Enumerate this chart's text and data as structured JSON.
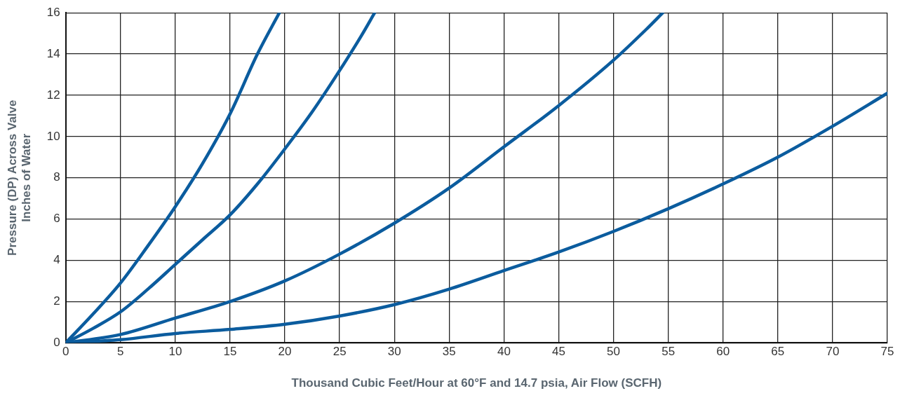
{
  "chart_data": {
    "type": "line",
    "xlabel": "Thousand Cubic Feet/Hour at 60°F and 14.7 psia, Air Flow (SCFH)",
    "ylabel": "Pressure (DP) Across Valve\nInches of Water",
    "xlim": [
      0,
      75
    ],
    "xticks": [
      0,
      5,
      10,
      15,
      20,
      25,
      30,
      35,
      40,
      45,
      50,
      55,
      60,
      65,
      70,
      75
    ],
    "ylim": [
      0,
      16
    ],
    "yticks": [
      0,
      2,
      4,
      6,
      8,
      10,
      12,
      14,
      16
    ],
    "grid": true,
    "legend": false,
    "marker": "none",
    "line_style": "solid",
    "series": [
      {
        "color": "#0b5c9e",
        "x": [
          0,
          2.5,
          5,
          7.5,
          10,
          12.5,
          15,
          17.5,
          19.5
        ],
        "values": [
          0,
          1.4,
          2.9,
          4.7,
          6.6,
          8.7,
          11.1,
          14,
          16
        ]
      },
      {
        "color": "#0b5c9e",
        "x": [
          0,
          2.5,
          5,
          7.5,
          10,
          12.5,
          15,
          17.5,
          20,
          22.5,
          25,
          27,
          28.2
        ],
        "values": [
          0,
          0.7,
          1.5,
          2.6,
          3.8,
          5,
          6.2,
          7.7,
          9.4,
          11.2,
          13.2,
          14.9,
          16
        ]
      },
      {
        "color": "#0b5c9e",
        "x": [
          0,
          5,
          10,
          15,
          20,
          25,
          30,
          35,
          40,
          45,
          50,
          53,
          54.5
        ],
        "values": [
          0,
          0.4,
          1.2,
          2.0,
          3.0,
          4.3,
          5.8,
          7.5,
          9.5,
          11.5,
          13.7,
          15.2,
          16
        ]
      },
      {
        "color": "#0b5c9e",
        "x": [
          0,
          5,
          10,
          15,
          20,
          25,
          30,
          35,
          40,
          45,
          50,
          55,
          60,
          65,
          70,
          75
        ],
        "values": [
          0,
          0.15,
          0.45,
          0.65,
          0.9,
          1.3,
          1.85,
          2.6,
          3.5,
          4.4,
          5.4,
          6.5,
          7.7,
          9.0,
          10.5,
          12.1
        ]
      }
    ]
  }
}
